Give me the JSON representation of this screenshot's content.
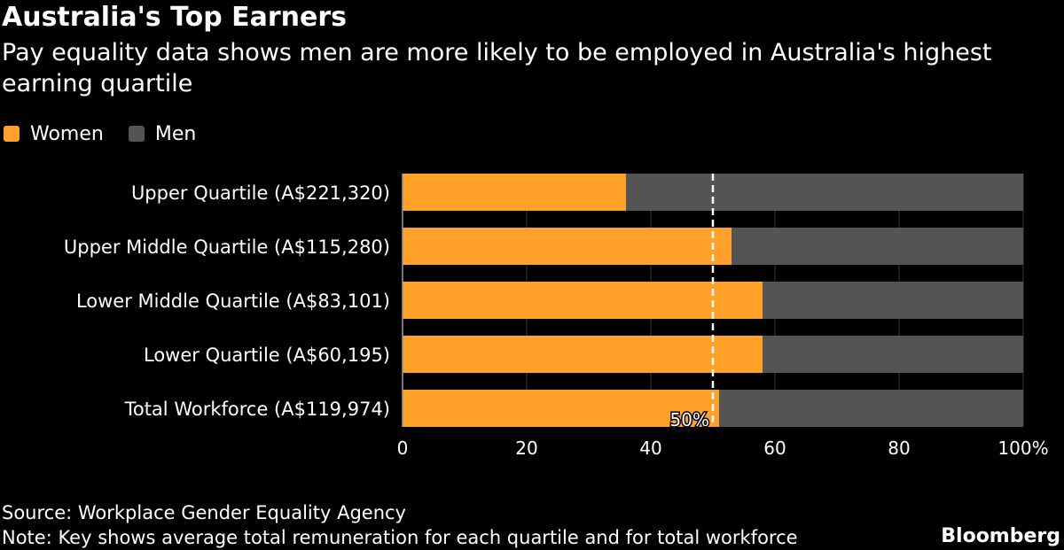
{
  "header": {
    "title": "Australia's Top Earners",
    "subtitle": "Pay equality data shows men are more likely to be employed in Australia's highest earning quartile"
  },
  "legend": {
    "items": [
      {
        "label": "Women",
        "color": "#FFA128"
      },
      {
        "label": "Men",
        "color": "#545454"
      }
    ]
  },
  "chart_data": {
    "type": "bar",
    "orientation": "horizontal",
    "stacked": true,
    "categories": [
      "Upper Quartile (A$221,320)",
      "Upper Middle Quartile (A$115,280)",
      "Lower Middle Quartile (A$83,101)",
      "Lower Quartile (A$60,195)",
      "Total Workforce (A$119,974)"
    ],
    "series": [
      {
        "name": "Women",
        "color": "#FFA128",
        "values": [
          36,
          53,
          58,
          58,
          51
        ]
      },
      {
        "name": "Men",
        "color": "#545454",
        "values": [
          64,
          47,
          42,
          42,
          49
        ]
      }
    ],
    "xlim": [
      0,
      100
    ],
    "xticks": [
      0,
      20,
      40,
      60,
      80,
      100
    ],
    "xtick_labels": [
      "0",
      "20",
      "40",
      "60",
      "80",
      "100%"
    ],
    "reference_line": {
      "value": 50,
      "label": "50%",
      "style": "dashed",
      "color": "#ffffff"
    },
    "legend_position": "top-left",
    "grid": true
  },
  "footer": {
    "source": "Source: Workplace Gender Equality Agency",
    "note": "Note: Key shows average total remuneration for each quartile and for total workforce",
    "brand": "Bloomberg"
  }
}
